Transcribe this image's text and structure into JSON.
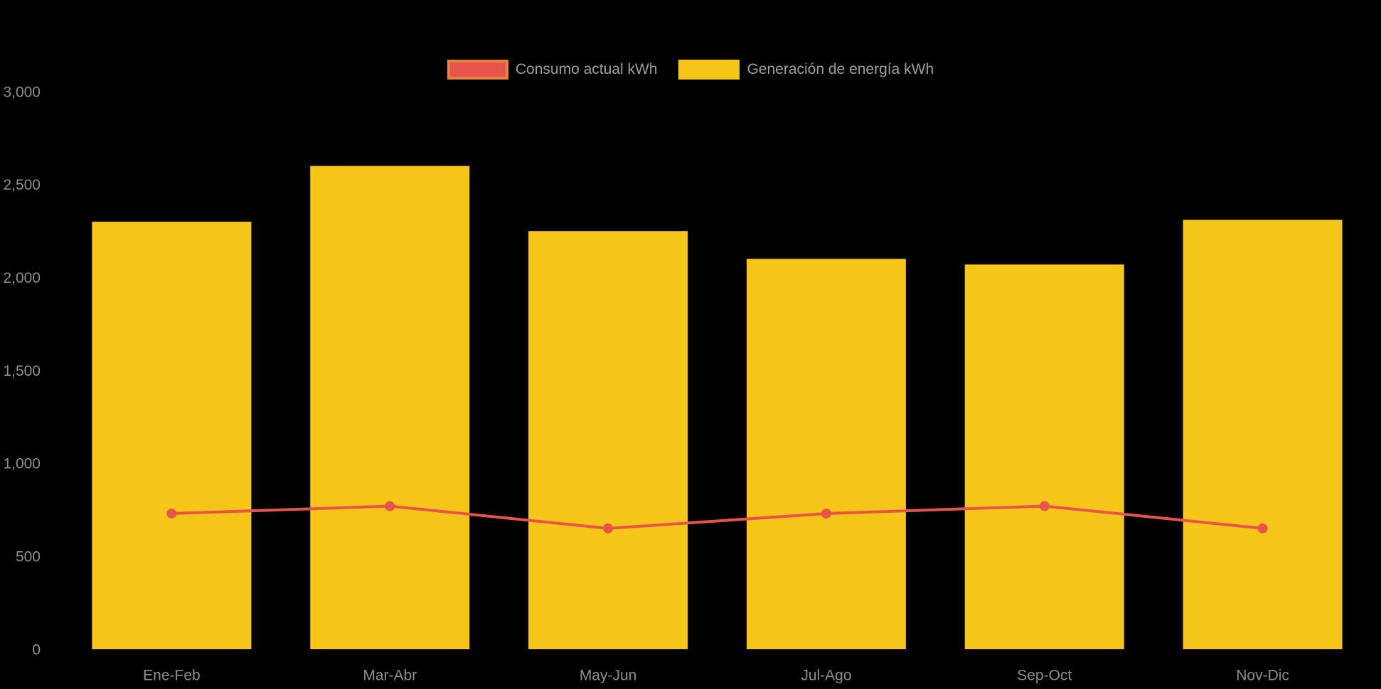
{
  "background_color": "#000000",
  "legend": {
    "position": "top",
    "items": [
      {
        "label": "Consumo actual kWh",
        "series_type": "line",
        "fill": "#E8544B",
        "stroke": "#E8823E"
      },
      {
        "label": "Generación de energía kWh",
        "series_type": "bar",
        "fill": "#F5C518",
        "stroke": "#F5C518"
      }
    ]
  },
  "axis_style": {
    "tick_text_color": "#8D8D8D",
    "legend_text_color": "#9E9E9E"
  },
  "chart_data": {
    "type": "bar",
    "title": "",
    "xlabel": "",
    "ylabel": "",
    "grid": false,
    "legend_position": "top",
    "categories": [
      "Ene-Feb",
      "Mar-Abr",
      "May-Jun",
      "Jul-Ago",
      "Sep-Oct",
      "Nov-Dic"
    ],
    "series": [
      {
        "name": "Generación de energía kWh",
        "type": "bar",
        "color": "#F5C518",
        "values": [
          2300,
          2600,
          2250,
          2100,
          2070,
          2310
        ]
      },
      {
        "name": "Consumo actual kWh",
        "type": "line",
        "color": "#E8544B",
        "marker": "circle",
        "values": [
          730,
          770,
          650,
          730,
          770,
          650
        ]
      }
    ],
    "ylim": [
      0,
      3000
    ],
    "yticks": [
      0,
      500,
      1000,
      1500,
      2000,
      2500,
      3000
    ],
    "ytick_labels": [
      "0",
      "500",
      "1,000",
      "1,500",
      "2,000",
      "2,500",
      "3,000"
    ]
  }
}
